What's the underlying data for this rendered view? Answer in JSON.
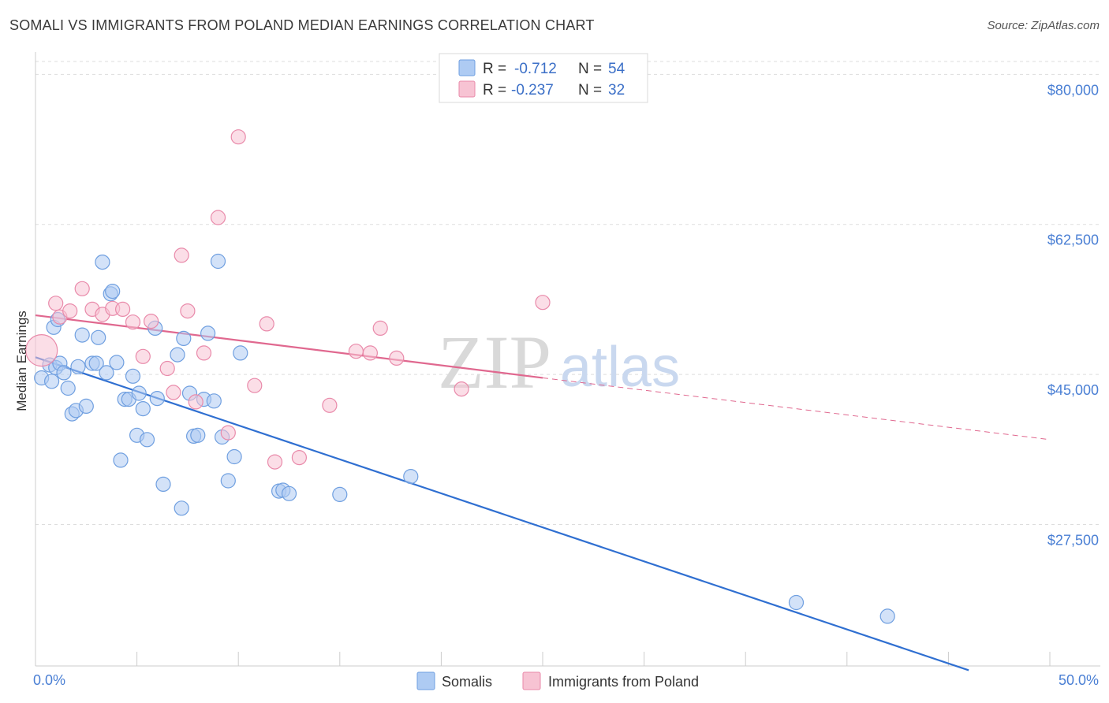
{
  "header": {
    "title": "SOMALI VS IMMIGRANTS FROM POLAND MEDIAN EARNINGS CORRELATION CHART",
    "source": "Source: ZipAtlas.com"
  },
  "watermark": {
    "zip": "ZIP",
    "atlas": "atlas"
  },
  "colors": {
    "somali_fill": "#aecbf3",
    "somali_stroke": "#6f9fe0",
    "somali_line": "#2f6fd1",
    "poland_fill": "#f7c3d3",
    "poland_stroke": "#e98aaa",
    "poland_line": "#e0688f",
    "tick_text": "#4a7fd4",
    "grid": "#dddddd"
  },
  "legend_top": {
    "rows": [
      {
        "r_label": "R =",
        "r_value": "-0.712",
        "n_label": "N =",
        "n_value": "54"
      },
      {
        "r_label": "R =",
        "r_value": "-0.237",
        "n_label": "N =",
        "n_value": "32"
      }
    ]
  },
  "legend_bottom": {
    "items": [
      "Somalis",
      "Immigrants from Poland"
    ]
  },
  "chart_data": {
    "type": "scatter",
    "title": "SOMALI VS IMMIGRANTS FROM POLAND MEDIAN EARNINGS CORRELATION CHART",
    "xlabel": "",
    "ylabel": "Median Earnings",
    "xlim": [
      0,
      50
    ],
    "ylim": [
      11000,
      81500
    ],
    "x_tick_labels": [
      "0.0%",
      "50.0%"
    ],
    "y_ticks": [
      27500,
      45000,
      62500,
      80000
    ],
    "y_tick_labels": [
      "$27,500",
      "$45,000",
      "$62,500",
      "$80,000"
    ],
    "grid": true,
    "legend_placement": "top-center",
    "series": [
      {
        "name": "Somalis",
        "points": [
          [
            0.3,
            44600
          ],
          [
            0.7,
            46100
          ],
          [
            0.8,
            44200
          ],
          [
            0.9,
            50500
          ],
          [
            1.0,
            45800
          ],
          [
            1.1,
            51400
          ],
          [
            1.2,
            46300
          ],
          [
            1.4,
            45200
          ],
          [
            1.6,
            43400
          ],
          [
            1.8,
            40400
          ],
          [
            2.0,
            40800
          ],
          [
            2.1,
            45900
          ],
          [
            2.3,
            49600
          ],
          [
            2.5,
            41300
          ],
          [
            2.8,
            46300
          ],
          [
            3.0,
            46300
          ],
          [
            3.1,
            49300
          ],
          [
            3.3,
            58100
          ],
          [
            3.5,
            45200
          ],
          [
            3.7,
            54400
          ],
          [
            3.8,
            54700
          ],
          [
            4.0,
            46400
          ],
          [
            4.2,
            35000
          ],
          [
            4.4,
            42100
          ],
          [
            4.6,
            42100
          ],
          [
            4.8,
            44800
          ],
          [
            5.0,
            37900
          ],
          [
            5.1,
            42800
          ],
          [
            5.3,
            41000
          ],
          [
            5.5,
            37400
          ],
          [
            5.9,
            50400
          ],
          [
            6.0,
            42200
          ],
          [
            6.3,
            32200
          ],
          [
            7.0,
            47300
          ],
          [
            7.2,
            29400
          ],
          [
            7.3,
            49200
          ],
          [
            7.6,
            42800
          ],
          [
            7.8,
            37800
          ],
          [
            8.0,
            37900
          ],
          [
            8.3,
            42100
          ],
          [
            8.5,
            49800
          ],
          [
            8.8,
            41900
          ],
          [
            9.0,
            58200
          ],
          [
            9.2,
            37700
          ],
          [
            9.5,
            32600
          ],
          [
            9.8,
            35400
          ],
          [
            10.1,
            47500
          ],
          [
            12.0,
            31400
          ],
          [
            12.2,
            31500
          ],
          [
            12.5,
            31100
          ],
          [
            15.0,
            31000
          ],
          [
            18.5,
            33100
          ],
          [
            37.5,
            18400
          ],
          [
            42.0,
            16800
          ]
        ]
      },
      {
        "name": "Immigrants from Poland",
        "points": [
          [
            0.3,
            47800
          ],
          [
            1.0,
            53300
          ],
          [
            1.2,
            51700
          ],
          [
            1.7,
            52400
          ],
          [
            2.3,
            55000
          ],
          [
            2.8,
            52600
          ],
          [
            3.3,
            52000
          ],
          [
            3.8,
            52700
          ],
          [
            4.3,
            52600
          ],
          [
            4.8,
            51100
          ],
          [
            5.3,
            47100
          ],
          [
            5.7,
            51200
          ],
          [
            6.5,
            45700
          ],
          [
            6.8,
            42900
          ],
          [
            7.2,
            58900
          ],
          [
            7.5,
            52400
          ],
          [
            7.9,
            41800
          ],
          [
            8.3,
            47500
          ],
          [
            9.0,
            63300
          ],
          [
            9.5,
            38200
          ],
          [
            10.0,
            72700
          ],
          [
            10.8,
            43700
          ],
          [
            11.4,
            50900
          ],
          [
            11.8,
            34800
          ],
          [
            13.0,
            35300
          ],
          [
            14.5,
            41400
          ],
          [
            15.8,
            47700
          ],
          [
            16.5,
            47500
          ],
          [
            17.0,
            50400
          ],
          [
            17.8,
            46900
          ],
          [
            21.0,
            43300
          ],
          [
            25.0,
            53400
          ]
        ]
      }
    ],
    "trend_lines": [
      {
        "series": "Somalis",
        "x": [
          0,
          46
        ],
        "y": [
          47000,
          10500
        ],
        "style": "solid"
      },
      {
        "series": "Immigrants from Poland",
        "x": [
          0,
          25
        ],
        "y": [
          51900,
          44600
        ],
        "style": "solid"
      },
      {
        "series": "Immigrants from Poland",
        "x": [
          25,
          50
        ],
        "y": [
          44600,
          37400
        ],
        "style": "dashed"
      }
    ]
  }
}
